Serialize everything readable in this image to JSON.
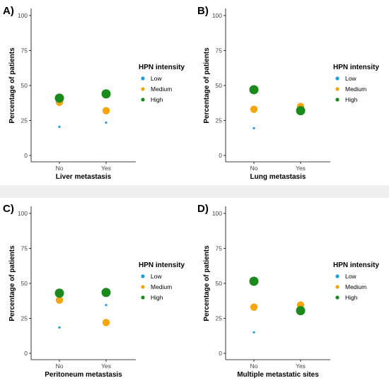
{
  "chart_data": [
    {
      "type": "scatter",
      "panel_label": "A)",
      "title": "",
      "xlabel": "Liver metastasis",
      "ylabel": "Percentage of patients",
      "categories": [
        "No",
        "Yes"
      ],
      "ylim": [
        0,
        100
      ],
      "yticks": [
        0,
        25,
        50,
        75,
        100
      ],
      "grid": false,
      "legend_position": "right",
      "legend_title": "HPN intensity",
      "series": [
        {
          "name": "Low",
          "color": "#1a9be6",
          "values": [
            20.5,
            23.5
          ]
        },
        {
          "name": "Medium",
          "color": "#f5a50a",
          "values": [
            38,
            32
          ]
        },
        {
          "name": "High",
          "color": "#1a8a1a",
          "values": [
            41,
            44
          ]
        }
      ]
    },
    {
      "type": "scatter",
      "panel_label": "B)",
      "title": "",
      "xlabel": "Lung metastasis",
      "ylabel": "Percentage of patients",
      "categories": [
        "No",
        "Yes"
      ],
      "ylim": [
        0,
        100
      ],
      "yticks": [
        0,
        25,
        50,
        75,
        100
      ],
      "grid": false,
      "legend_position": "right",
      "legend_title": "HPN intensity",
      "series": [
        {
          "name": "Low",
          "color": "#1a9be6",
          "values": [
            19.5,
            32
          ]
        },
        {
          "name": "Medium",
          "color": "#f5a50a",
          "values": [
            33,
            35
          ]
        },
        {
          "name": "High",
          "color": "#1a8a1a",
          "values": [
            47,
            32
          ]
        }
      ]
    },
    {
      "type": "scatter",
      "panel_label": "C)",
      "title": "",
      "xlabel": "Peritoneum metastasis",
      "ylabel": "Percentage of patients",
      "categories": [
        "No",
        "Yes"
      ],
      "ylim": [
        0,
        100
      ],
      "yticks": [
        0,
        25,
        50,
        75,
        100
      ],
      "grid": false,
      "legend_position": "right",
      "legend_title": "HPN intensity",
      "series": [
        {
          "name": "Low",
          "color": "#1a9be6",
          "values": [
            18.5,
            34.5
          ]
        },
        {
          "name": "Medium",
          "color": "#f5a50a",
          "values": [
            38,
            22
          ]
        },
        {
          "name": "High",
          "color": "#1a8a1a",
          "values": [
            43,
            43.5
          ]
        }
      ]
    },
    {
      "type": "scatter",
      "panel_label": "D)",
      "title": "",
      "xlabel": "Multiple metastatic sites",
      "ylabel": "Percentage of patients",
      "categories": [
        "No",
        "Yes"
      ],
      "ylim": [
        0,
        100
      ],
      "yticks": [
        0,
        25,
        50,
        75,
        100
      ],
      "grid": false,
      "legend_position": "right",
      "legend_title": "HPN intensity",
      "series": [
        {
          "name": "Low",
          "color": "#1a9be6",
          "values": [
            15,
            34.5
          ]
        },
        {
          "name": "Medium",
          "color": "#f5a50a",
          "values": [
            33,
            34.5
          ]
        },
        {
          "name": "High",
          "color": "#1a8a1a",
          "values": [
            51.5,
            30.5
          ]
        }
      ]
    }
  ]
}
